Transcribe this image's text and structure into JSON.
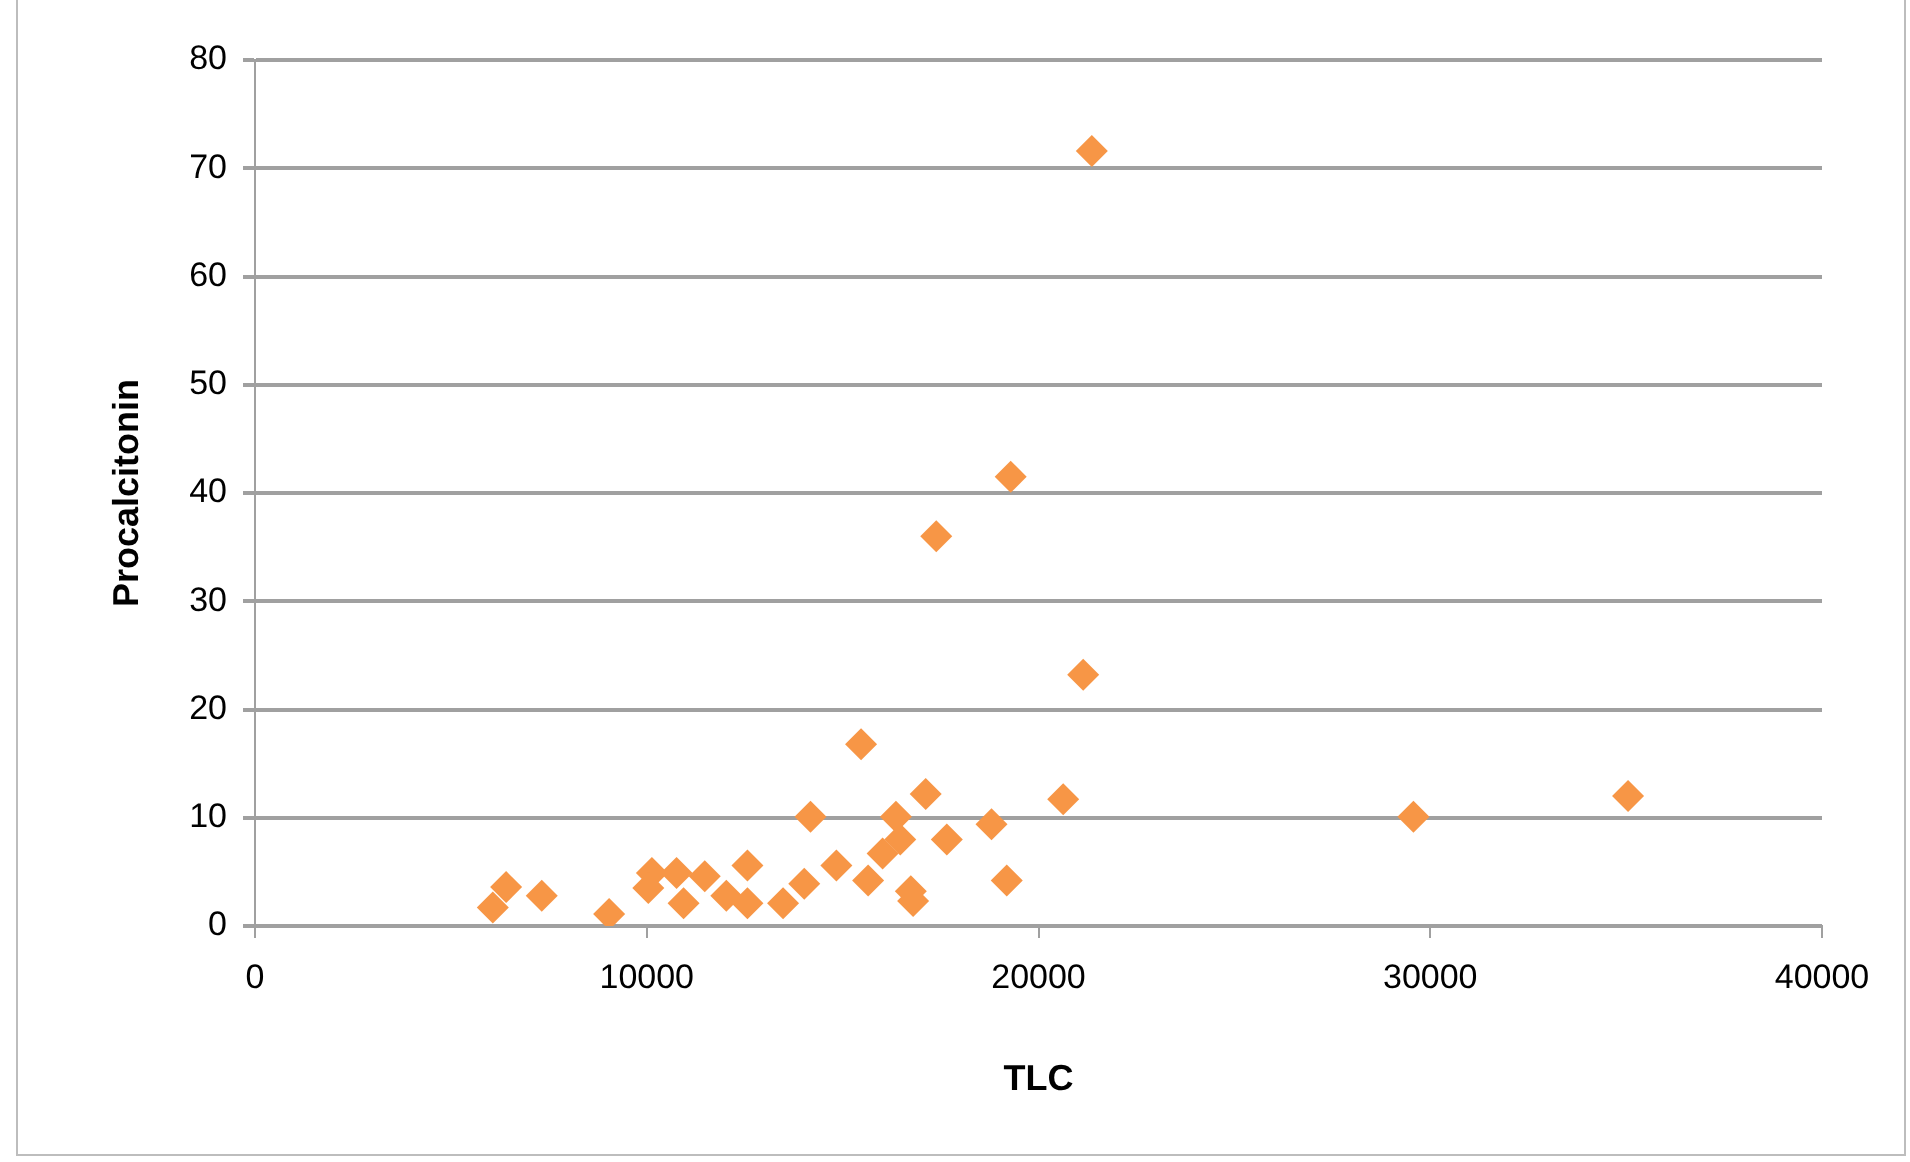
{
  "chart_data": {
    "type": "scatter",
    "xlabel": "TLC",
    "ylabel": "Procalcitonin",
    "marker": "diamond",
    "grid": "y",
    "legend": false,
    "xlim": [
      0,
      40000
    ],
    "xticks": [
      0,
      10000,
      20000,
      30000,
      40000
    ],
    "ylim": [
      0,
      80
    ],
    "yticks": [
      0,
      10,
      20,
      30,
      40,
      50,
      60,
      70,
      80
    ],
    "series": [
      {
        "color": "#f79646",
        "x": [
          6070,
          6410,
          7320,
          9040,
          10130,
          10040,
          10760,
          10940,
          11480,
          12030,
          12570,
          12570,
          13480,
          14020,
          14180,
          14840,
          15470,
          15650,
          16020,
          16360,
          16470,
          16740,
          16800,
          17120,
          17390,
          17660,
          18800,
          19190,
          19290,
          20630,
          21140,
          21360,
          29570,
          35050
        ],
        "values": [
          1.7,
          3.6,
          2.8,
          1.1,
          4.9,
          3.5,
          4.9,
          2.1,
          4.6,
          2.8,
          5.6,
          2.1,
          2.1,
          3.9,
          10.1,
          5.6,
          16.8,
          4.2,
          6.7,
          10.1,
          8,
          3.2,
          2.3,
          12.2,
          36,
          8,
          9.4,
          4.2,
          41.5,
          11.7,
          23.2,
          71.6,
          10.1,
          12
        ]
      }
    ]
  }
}
